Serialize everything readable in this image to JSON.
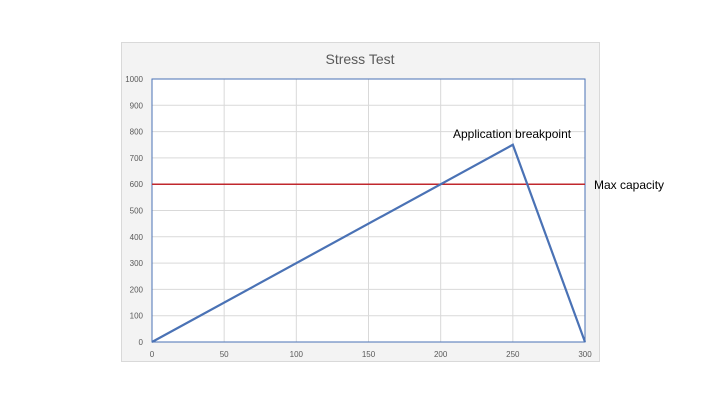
{
  "chart_data": {
    "type": "line",
    "title": "Stress Test",
    "xlabel": "",
    "ylabel": "",
    "x_ticks": [
      0,
      50,
      100,
      150,
      200,
      250,
      300
    ],
    "y_ticks": [
      0,
      100,
      200,
      300,
      400,
      500,
      600,
      700,
      800,
      900,
      1000
    ],
    "xlim": [
      0,
      300
    ],
    "ylim": [
      0,
      1000
    ],
    "grid": true,
    "series": [
      {
        "color": "#4a72b5",
        "points": [
          {
            "x": 0,
            "y": 0
          },
          {
            "x": 250,
            "y": 750
          },
          {
            "x": 300,
            "y": 0
          }
        ]
      }
    ],
    "reference_lines": [
      {
        "y": 600,
        "color": "#c0282d"
      }
    ],
    "annotations": [
      {
        "text": "Application breakpoint",
        "x": 250,
        "y": 750
      },
      {
        "text": "Max capacity",
        "y": 600
      }
    ]
  },
  "colors": {
    "chart_background": "#f3f3f3",
    "plot_background": "#ffffff",
    "gridline": "#d9d9d9",
    "axis_border": "#4a72b5",
    "tick_label": "#595959",
    "title": "#595959"
  }
}
